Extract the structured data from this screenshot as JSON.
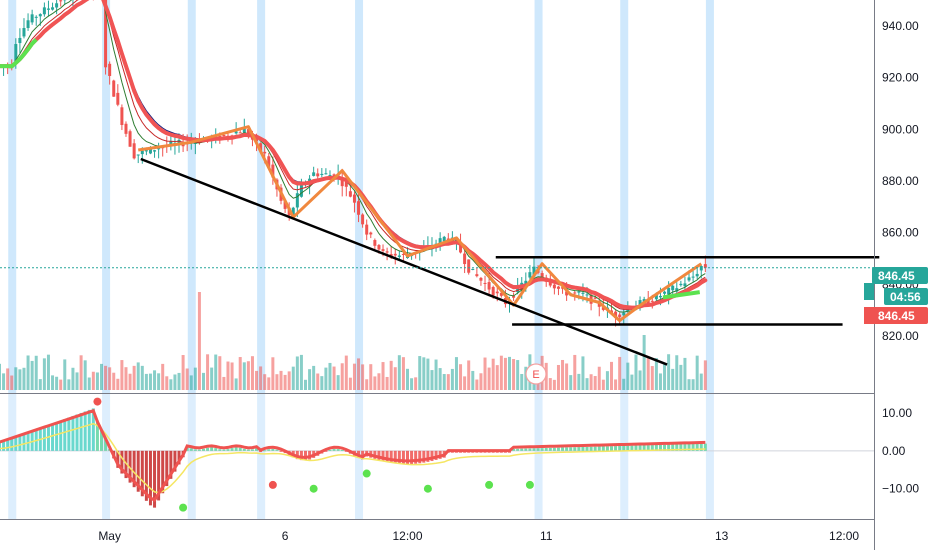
{
  "chart_data": [
    {
      "type": "candlestick",
      "panel": "price",
      "ylim": [
        798,
        950
      ],
      "y_ticks": [
        "940.00",
        "920.00",
        "900.00",
        "880.00",
        "860.00",
        "840.00",
        "820.00"
      ],
      "y_tick_values": [
        940,
        920,
        900,
        880,
        860,
        840,
        820
      ],
      "x_ticks": [
        "May",
        "6",
        "12:00",
        "11",
        "13",
        "12:00"
      ],
      "x_tick_index": [
        27,
        70,
        100,
        134,
        177,
        207
      ],
      "last_price": {
        "value": 846.45,
        "label": "846.45"
      },
      "countdown": "04:56",
      "close_label": "846.45",
      "event_icon": "E",
      "colors": {
        "up": "#26a69a",
        "down": "#ef5350",
        "vol_up": "#26a69a",
        "vol_down": "#ef5350",
        "highlight": "#bbdefb",
        "trend_line": "#000000",
        "pivot_line": "#f0883e",
        "ema_slow": "#f05454",
        "ema_green": "#5ce24f"
      },
      "highlight_bars": [
        3,
        26,
        47,
        64,
        88,
        132,
        153,
        174
      ],
      "trend_lines": [
        {
          "from": [
            35,
            888.5
          ],
          "to": [
            164,
            809
          ]
        },
        {
          "from": [
            122,
            850.5
          ],
          "to": [
            216,
            850.5
          ]
        },
        {
          "from": [
            126,
            824.5
          ],
          "to": [
            207,
            824.5
          ]
        }
      ]
    },
    {
      "type": "histogram",
      "panel": "oscillator",
      "ylim": [
        -18,
        15
      ],
      "y_ticks": [
        "10.00",
        "0.00",
        "−10.00"
      ],
      "y_tick_values": [
        10,
        0,
        -10
      ]
    }
  ]
}
